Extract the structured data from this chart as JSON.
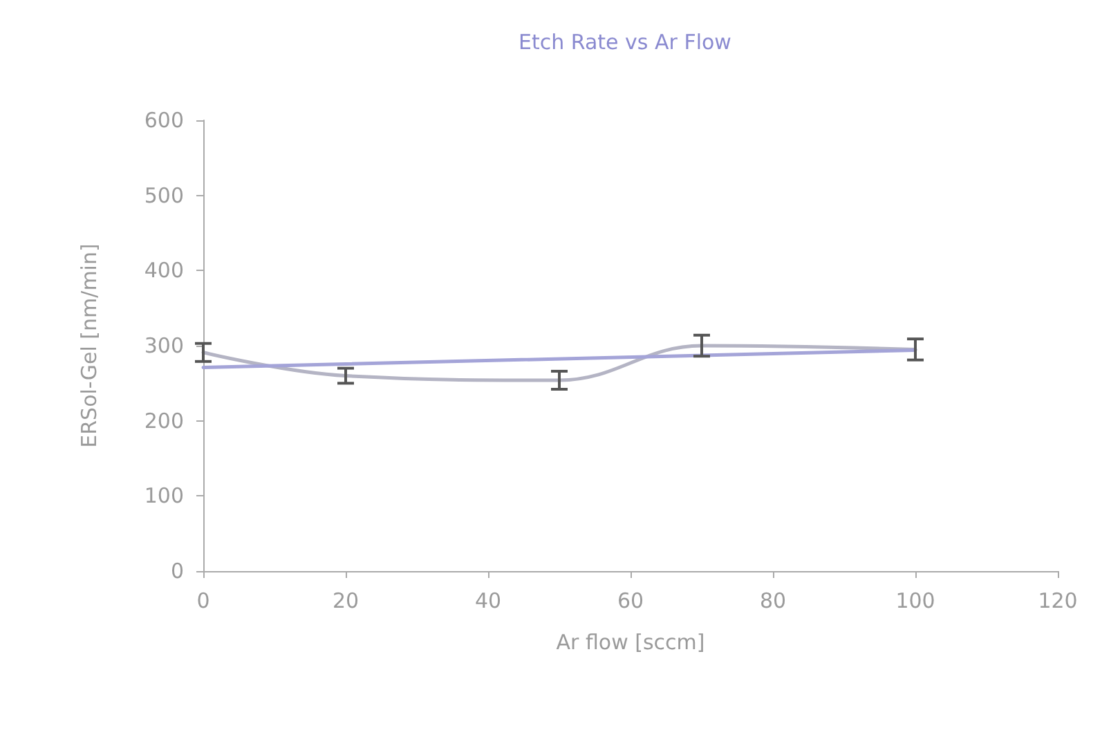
{
  "chart_data": {
    "type": "line",
    "title": "Etch Rate vs Ar Flow",
    "xlabel": "Ar flow [sccm]",
    "ylabel": "ERSol-Gel [nm/min]",
    "x": [
      0,
      20,
      50,
      70,
      100
    ],
    "series": [
      {
        "color": "#b4b4c4",
        "values": [
          291,
          260,
          254,
          300,
          295
        ],
        "errors": [
          12,
          10,
          12,
          14,
          14
        ]
      },
      {
        "color": "#a4a4d8",
        "x": [
          0,
          100
        ],
        "values": [
          271,
          294
        ]
      }
    ],
    "xlim": [
      0,
      120
    ],
    "xticks": [
      0,
      20,
      40,
      60,
      80,
      100,
      120
    ],
    "ylim": [
      0,
      600
    ],
    "yticks": [
      0,
      100,
      200,
      300,
      400,
      500,
      600
    ],
    "grid": false,
    "marker": "none",
    "line_style": "solid"
  }
}
